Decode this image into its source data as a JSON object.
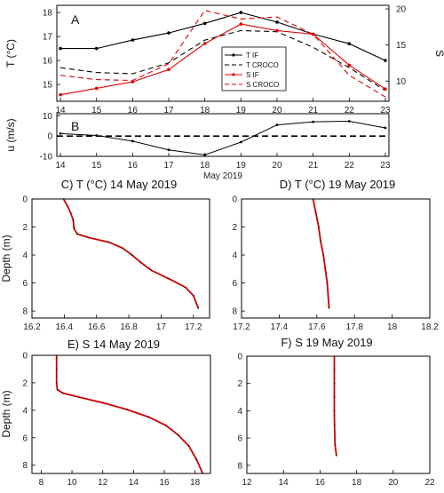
{
  "chart_data": [
    {
      "id": "A",
      "type": "line",
      "panel_label": "A",
      "ylabel_left": "T (°C)",
      "ylabel_right": "S",
      "x": [
        14,
        15,
        16,
        17,
        18,
        19,
        20,
        21,
        22,
        23
      ],
      "xlim": [
        13.9,
        23.1
      ],
      "x_ticks": [
        "14",
        "15",
        "16",
        "17",
        "18",
        "19",
        "20",
        "21",
        "22",
        "23"
      ],
      "ylim_left": [
        14.3,
        18.3
      ],
      "y_ticks_left": [
        "15",
        "16",
        "17",
        "18"
      ],
      "ylim_right": [
        7.2,
        20.5
      ],
      "y_ticks_right": [
        "10",
        "15",
        "20"
      ],
      "series": [
        {
          "name": "T IF",
          "axis": "left",
          "color": "#000000",
          "dash": "none",
          "marker": true,
          "values": [
            16.5,
            16.5,
            16.85,
            17.15,
            17.55,
            18.0,
            17.6,
            17.1,
            16.7,
            16.0
          ]
        },
        {
          "name": "T CROCO",
          "axis": "left",
          "color": "#000000",
          "dash": "6,4",
          "marker": false,
          "values": [
            15.7,
            15.5,
            15.45,
            15.9,
            16.85,
            17.25,
            17.2,
            16.55,
            15.7,
            14.75
          ]
        },
        {
          "name": "S IF",
          "axis": "right",
          "color": "#dd0000",
          "dash": "none",
          "marker": true,
          "values": [
            8.1,
            9.0,
            9.9,
            11.6,
            15.2,
            17.9,
            17.0,
            16.5,
            12.2,
            8.9
          ]
        },
        {
          "name": "S CROCO",
          "axis": "right",
          "color": "#dd0000",
          "dash": "6,4",
          "marker": false,
          "values": [
            10.8,
            10.2,
            10.1,
            12.4,
            19.8,
            18.6,
            18.9,
            16.5,
            10.8,
            7.8
          ]
        }
      ],
      "legend_position": "center-right"
    },
    {
      "id": "B",
      "type": "line",
      "panel_label": "B",
      "ylabel": "u (m/s)",
      "xlabel": "May 2019",
      "x": [
        14,
        15,
        16,
        17,
        18,
        19,
        20,
        21,
        22,
        23
      ],
      "xlim": [
        13.9,
        23.1
      ],
      "x_ticks": [
        "14",
        "15",
        "16",
        "17",
        "18",
        "19",
        "20",
        "21",
        "22",
        "23"
      ],
      "ylim": [
        -10,
        11
      ],
      "y_ticks": [
        "-10",
        "0",
        "10"
      ],
      "zero_line": true,
      "series": [
        {
          "color": "#000000",
          "values": [
            1.2,
            0.3,
            -2.5,
            -6.8,
            -9.3,
            -3.0,
            5.5,
            7.0,
            7.3,
            4.0
          ]
        }
      ]
    },
    {
      "id": "C",
      "type": "line",
      "title": "C) T (°C) 14 May 2019",
      "ylabel": "Depth (m)",
      "xlim": [
        16.2,
        17.3
      ],
      "x_ticks": [
        "16.2",
        "16.4",
        "16.6",
        "16.8",
        "17",
        "17.2"
      ],
      "ylim": [
        0,
        8.5
      ],
      "y_ticks": [
        "0",
        "2",
        "4",
        "6",
        "8"
      ],
      "y_inverted": true,
      "series": [
        {
          "color": "#cc0000",
          "x": [
            16.395,
            16.42,
            16.44,
            16.455,
            16.46,
            16.48,
            16.55,
            16.68,
            16.76,
            16.82,
            16.87,
            16.94,
            17.05,
            17.15,
            17.2,
            17.23
          ],
          "y": [
            0.0,
            0.5,
            1.0,
            1.5,
            2.1,
            2.5,
            2.75,
            3.1,
            3.5,
            4.0,
            4.5,
            5.1,
            5.7,
            6.3,
            6.9,
            7.8
          ]
        }
      ]
    },
    {
      "id": "D",
      "type": "line",
      "title": "D) T (°C) 19 May 2019",
      "xlim": [
        17.2,
        18.2
      ],
      "x_ticks": [
        "17.2",
        "17.4",
        "17.6",
        "17.8",
        "18",
        "18.2"
      ],
      "ylim": [
        0,
        8.5
      ],
      "y_ticks": [
        "0",
        "2",
        "4",
        "6",
        "8"
      ],
      "y_inverted": true,
      "series": [
        {
          "color": "#cc0000",
          "x": [
            17.58,
            17.595,
            17.61,
            17.62,
            17.635,
            17.645,
            17.655,
            17.665
          ],
          "y": [
            0.0,
            1.0,
            2.0,
            3.0,
            4.0,
            5.0,
            6.0,
            7.8
          ]
        }
      ]
    },
    {
      "id": "E",
      "type": "line",
      "title": "E) S 14 May 2019",
      "ylabel": "Depth (m)",
      "xlim": [
        7.4,
        19.0
      ],
      "x_ticks": [
        "8",
        "10",
        "12",
        "14",
        "16",
        "18"
      ],
      "ylim": [
        0,
        8.6
      ],
      "y_ticks": [
        "0",
        "2",
        "4",
        "6",
        "8"
      ],
      "y_inverted": true,
      "series": [
        {
          "color": "#cc0000",
          "x": [
            9.0,
            9.0,
            9.0,
            9.05,
            9.4,
            10.5,
            12.0,
            13.6,
            15.0,
            16.1,
            16.9,
            17.6,
            18.1,
            18.5
          ],
          "y": [
            0.0,
            1.0,
            2.0,
            2.5,
            2.75,
            3.05,
            3.45,
            3.95,
            4.5,
            5.1,
            5.8,
            6.6,
            7.6,
            8.6
          ]
        }
      ]
    },
    {
      "id": "F",
      "type": "line",
      "title": "F) S 19 May 2019",
      "xlim": [
        12,
        22
      ],
      "x_ticks": [
        "12",
        "14",
        "16",
        "18",
        "20",
        "22"
      ],
      "ylim": [
        0,
        8.6
      ],
      "y_ticks": [
        "0",
        "2",
        "4",
        "6",
        "8"
      ],
      "y_inverted": true,
      "series": [
        {
          "color": "#cc0000",
          "x": [
            16.78,
            16.78,
            16.78,
            16.78,
            16.78,
            16.79,
            16.82,
            16.9
          ],
          "y": [
            0.0,
            1.0,
            2.0,
            3.0,
            4.0,
            5.0,
            6.5,
            7.3
          ]
        }
      ]
    }
  ]
}
